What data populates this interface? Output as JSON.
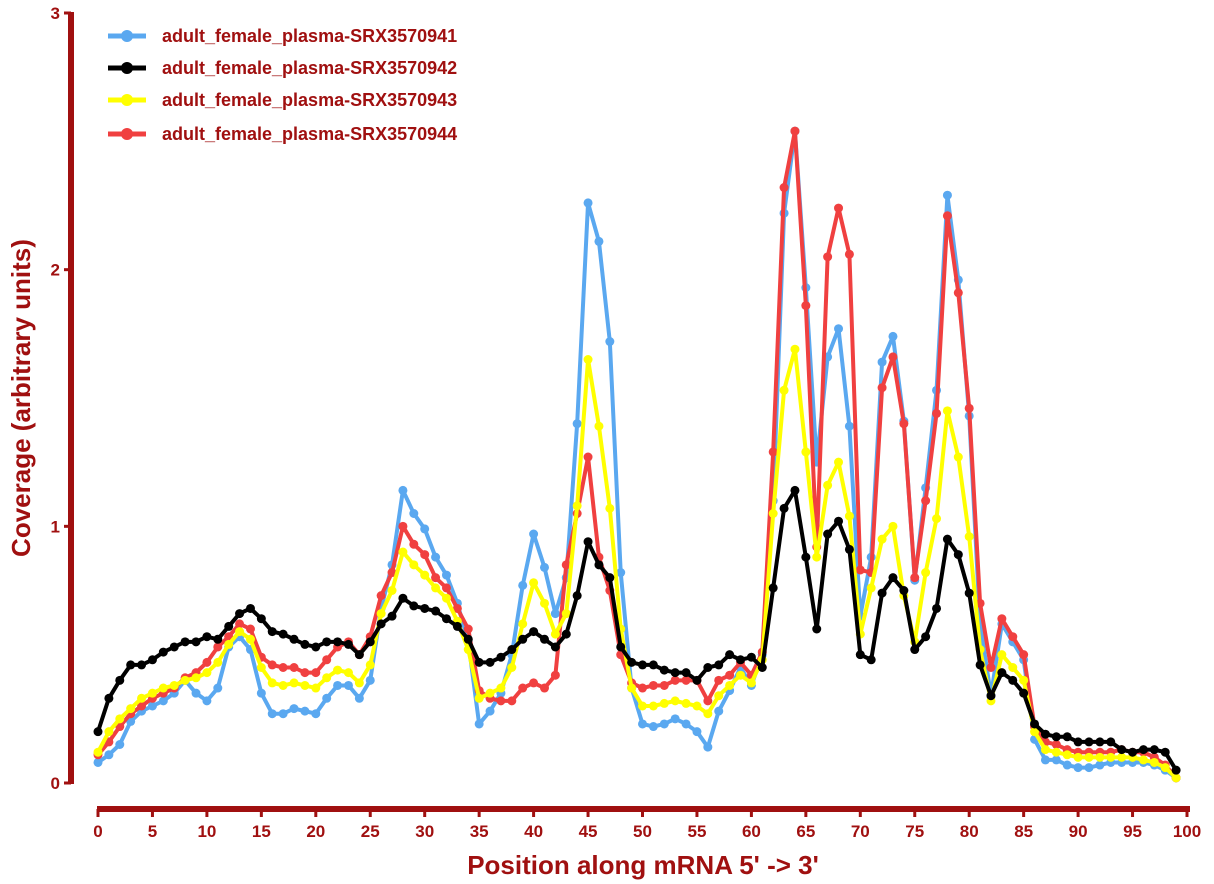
{
  "chart_data": {
    "type": "line",
    "title": "",
    "xlabel": "Position along mRNA 5' -> 3'",
    "ylabel": "Coverage (arbitrary units)",
    "xlim": [
      0,
      100
    ],
    "ylim": [
      0,
      3
    ],
    "x_ticks": [
      0,
      5,
      10,
      15,
      20,
      25,
      30,
      35,
      40,
      45,
      50,
      55,
      60,
      65,
      70,
      75,
      80,
      85,
      90,
      95,
      100
    ],
    "y_ticks": [
      0,
      1,
      2,
      3
    ],
    "grid": false,
    "legend_position": "top-left",
    "x": [
      0,
      1,
      2,
      3,
      4,
      5,
      6,
      7,
      8,
      9,
      10,
      11,
      12,
      13,
      14,
      15,
      16,
      17,
      18,
      19,
      20,
      21,
      22,
      23,
      24,
      25,
      26,
      27,
      28,
      29,
      30,
      31,
      32,
      33,
      34,
      35,
      36,
      37,
      38,
      39,
      40,
      41,
      42,
      43,
      44,
      45,
      46,
      47,
      48,
      49,
      50,
      51,
      52,
      53,
      54,
      55,
      56,
      57,
      58,
      59,
      60,
      61,
      62,
      63,
      64,
      65,
      66,
      67,
      68,
      69,
      70,
      71,
      72,
      73,
      74,
      75,
      76,
      77,
      78,
      79,
      80,
      81,
      82,
      83,
      84,
      85,
      86,
      87,
      88,
      89,
      90,
      91,
      92,
      93,
      94,
      95,
      96,
      97,
      98,
      99
    ],
    "series": [
      {
        "name": "adult_female_plasma-SRX3570941",
        "color": "#5aa8f0",
        "values": [
          0.08,
          0.11,
          0.15,
          0.24,
          0.28,
          0.3,
          0.32,
          0.35,
          0.4,
          0.35,
          0.32,
          0.37,
          0.53,
          0.57,
          0.52,
          0.35,
          0.27,
          0.27,
          0.29,
          0.28,
          0.27,
          0.33,
          0.38,
          0.38,
          0.33,
          0.4,
          0.68,
          0.85,
          1.14,
          1.05,
          0.99,
          0.88,
          0.81,
          0.7,
          0.55,
          0.23,
          0.28,
          0.35,
          0.5,
          0.77,
          0.97,
          0.84,
          0.66,
          0.8,
          1.4,
          2.26,
          2.11,
          1.72,
          0.82,
          0.37,
          0.23,
          0.22,
          0.23,
          0.25,
          0.23,
          0.2,
          0.14,
          0.28,
          0.36,
          0.45,
          0.38,
          0.5,
          1.1,
          2.22,
          2.54,
          1.93,
          1.25,
          1.66,
          1.77,
          1.39,
          0.65,
          0.88,
          1.64,
          1.74,
          1.41,
          0.79,
          1.15,
          1.53,
          2.29,
          1.96,
          1.43,
          0.62,
          0.34,
          0.62,
          0.55,
          0.48,
          0.17,
          0.09,
          0.09,
          0.07,
          0.06,
          0.06,
          0.07,
          0.08,
          0.08,
          0.08,
          0.08,
          0.07,
          0.05,
          0.02
        ]
      },
      {
        "name": "adult_female_plasma-SRX3570942",
        "color": "#000000",
        "values": [
          0.2,
          0.33,
          0.4,
          0.46,
          0.46,
          0.48,
          0.51,
          0.53,
          0.55,
          0.55,
          0.57,
          0.56,
          0.61,
          0.66,
          0.68,
          0.64,
          0.59,
          0.58,
          0.56,
          0.54,
          0.53,
          0.55,
          0.55,
          0.54,
          0.5,
          0.55,
          0.62,
          0.65,
          0.72,
          0.69,
          0.68,
          0.67,
          0.64,
          0.61,
          0.56,
          0.47,
          0.47,
          0.49,
          0.52,
          0.56,
          0.59,
          0.56,
          0.53,
          0.58,
          0.73,
          0.94,
          0.85,
          0.8,
          0.53,
          0.47,
          0.46,
          0.46,
          0.44,
          0.43,
          0.43,
          0.4,
          0.45,
          0.46,
          0.5,
          0.48,
          0.49,
          0.45,
          0.76,
          1.07,
          1.14,
          0.88,
          0.6,
          0.97,
          1.02,
          0.91,
          0.5,
          0.48,
          0.74,
          0.8,
          0.75,
          0.52,
          0.57,
          0.68,
          0.95,
          0.89,
          0.74,
          0.46,
          0.34,
          0.43,
          0.4,
          0.35,
          0.23,
          0.19,
          0.18,
          0.18,
          0.16,
          0.16,
          0.16,
          0.16,
          0.13,
          0.12,
          0.13,
          0.13,
          0.12,
          0.05
        ]
      },
      {
        "name": "adult_female_plasma-SRX3570943",
        "color": "#ffff00",
        "values": [
          0.12,
          0.2,
          0.25,
          0.29,
          0.33,
          0.35,
          0.37,
          0.38,
          0.4,
          0.41,
          0.43,
          0.47,
          0.54,
          0.59,
          0.56,
          0.45,
          0.39,
          0.38,
          0.39,
          0.38,
          0.37,
          0.41,
          0.44,
          0.43,
          0.39,
          0.46,
          0.66,
          0.75,
          0.9,
          0.85,
          0.81,
          0.76,
          0.72,
          0.63,
          0.52,
          0.33,
          0.35,
          0.37,
          0.45,
          0.62,
          0.78,
          0.7,
          0.58,
          0.66,
          1.08,
          1.65,
          1.39,
          1.07,
          0.6,
          0.37,
          0.3,
          0.3,
          0.31,
          0.32,
          0.31,
          0.3,
          0.27,
          0.34,
          0.38,
          0.42,
          0.39,
          0.48,
          1.05,
          1.53,
          1.69,
          1.29,
          0.88,
          1.16,
          1.25,
          1.04,
          0.58,
          0.76,
          0.95,
          1.0,
          0.73,
          0.55,
          0.82,
          1.03,
          1.45,
          1.27,
          0.96,
          0.52,
          0.32,
          0.5,
          0.45,
          0.4,
          0.2,
          0.13,
          0.12,
          0.11,
          0.1,
          0.1,
          0.1,
          0.1,
          0.1,
          0.1,
          0.09,
          0.08,
          0.06,
          0.02
        ]
      },
      {
        "name": "adult_female_plasma-SRX3570944",
        "color": "#f04040",
        "values": [
          0.11,
          0.16,
          0.22,
          0.27,
          0.3,
          0.33,
          0.35,
          0.37,
          0.41,
          0.43,
          0.47,
          0.53,
          0.57,
          0.62,
          0.6,
          0.49,
          0.46,
          0.45,
          0.45,
          0.43,
          0.43,
          0.48,
          0.53,
          0.55,
          0.5,
          0.57,
          0.73,
          0.82,
          1.0,
          0.93,
          0.89,
          0.8,
          0.76,
          0.68,
          0.6,
          0.36,
          0.33,
          0.32,
          0.32,
          0.37,
          0.39,
          0.37,
          0.42,
          0.85,
          1.05,
          1.27,
          0.88,
          0.75,
          0.5,
          0.39,
          0.37,
          0.38,
          0.38,
          0.4,
          0.4,
          0.4,
          0.32,
          0.4,
          0.42,
          0.47,
          0.42,
          0.51,
          1.29,
          2.32,
          2.54,
          1.86,
          0.92,
          2.05,
          2.24,
          2.06,
          0.83,
          0.82,
          1.54,
          1.66,
          1.4,
          0.8,
          1.1,
          1.44,
          2.21,
          1.91,
          1.46,
          0.7,
          0.45,
          0.64,
          0.57,
          0.5,
          0.22,
          0.16,
          0.15,
          0.13,
          0.12,
          0.12,
          0.12,
          0.12,
          0.13,
          0.12,
          0.12,
          0.1,
          0.07,
          0.02
        ]
      }
    ]
  }
}
